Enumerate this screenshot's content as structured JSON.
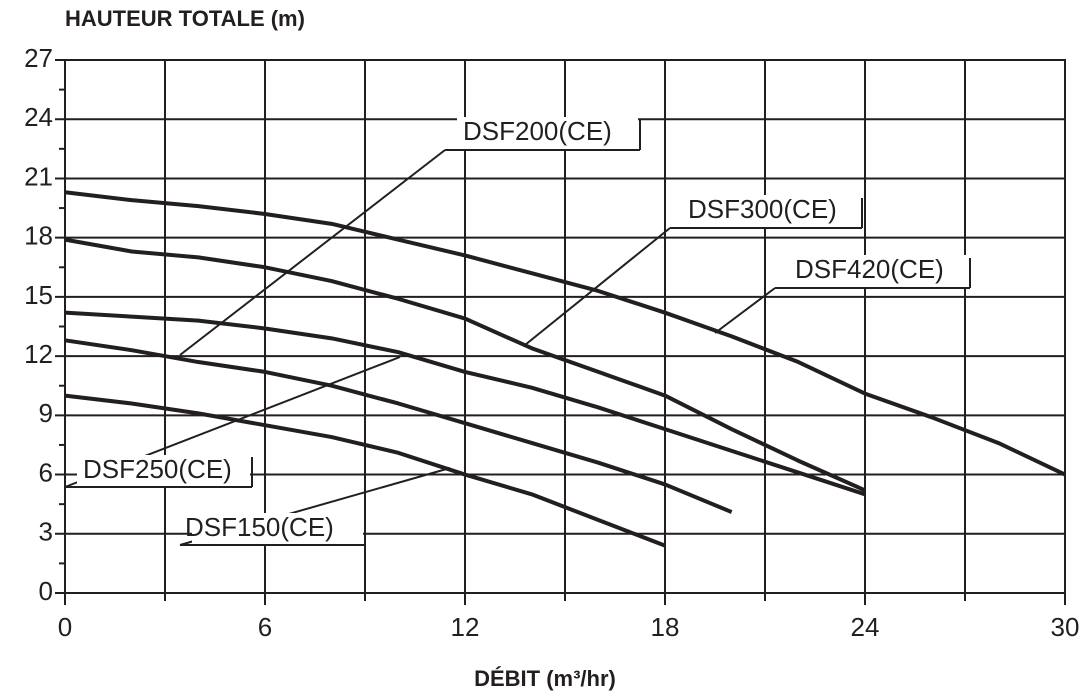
{
  "chart_data": {
    "type": "line",
    "title": "HAUTEUR TOTALE (m)",
    "x_label": "DÉBIT (m³/hr)",
    "xlim": [
      0,
      30
    ],
    "xticks": [
      0,
      6,
      12,
      18,
      24,
      30
    ],
    "xminor_ticks": [
      3,
      9,
      15,
      21,
      27
    ],
    "ylim": [
      0,
      27
    ],
    "yticks": [
      0,
      3,
      6,
      9,
      12,
      15,
      18,
      21,
      24,
      27
    ],
    "yminor_ticks": [
      1.5,
      4.5,
      7.5,
      10.5,
      13.5,
      16.5,
      19.5,
      22.5,
      25.5
    ],
    "grid": true,
    "series": [
      {
        "name": "DSF420(CE)",
        "color": "#231f20",
        "x": [
          0,
          2,
          4,
          6,
          8,
          10,
          12,
          14,
          16,
          18,
          20,
          22,
          24,
          26,
          28,
          30
        ],
        "values": [
          20.3,
          19.9,
          19.6,
          19.2,
          18.7,
          17.9,
          17.1,
          16.2,
          15.3,
          14.2,
          13.0,
          11.7,
          10.1,
          8.9,
          7.6,
          6.0
        ]
      },
      {
        "name": "DSF300(CE)",
        "color": "#231f20",
        "x": [
          0,
          2,
          4,
          6,
          8,
          10,
          12,
          14,
          16,
          18,
          20,
          22,
          24
        ],
        "values": [
          17.9,
          17.3,
          17.0,
          16.5,
          15.8,
          14.9,
          13.9,
          12.4,
          11.2,
          10.0,
          8.3,
          6.7,
          5.2
        ]
      },
      {
        "name": "DSF250(CE)",
        "color": "#231f20",
        "x": [
          0,
          2,
          4,
          6,
          8,
          10,
          12,
          14,
          16,
          18,
          20,
          22,
          24
        ],
        "values": [
          14.2,
          14.0,
          13.8,
          13.4,
          12.9,
          12.2,
          11.2,
          10.4,
          9.4,
          8.3,
          7.2,
          6.1,
          5.0
        ]
      },
      {
        "name": "DSF200(CE)",
        "color": "#231f20",
        "x": [
          0,
          2,
          4,
          6,
          8,
          10,
          12,
          14,
          16,
          18,
          20
        ],
        "values": [
          12.8,
          12.3,
          11.7,
          11.2,
          10.5,
          9.6,
          8.6,
          7.6,
          6.6,
          5.5,
          4.1
        ]
      },
      {
        "name": "DSF150(CE)",
        "color": "#231f20",
        "x": [
          0,
          2,
          4,
          6,
          8,
          10,
          12,
          14,
          16,
          18
        ],
        "values": [
          10.0,
          9.6,
          9.1,
          8.5,
          7.9,
          7.1,
          6.0,
          5.0,
          3.7,
          2.4
        ]
      }
    ]
  }
}
